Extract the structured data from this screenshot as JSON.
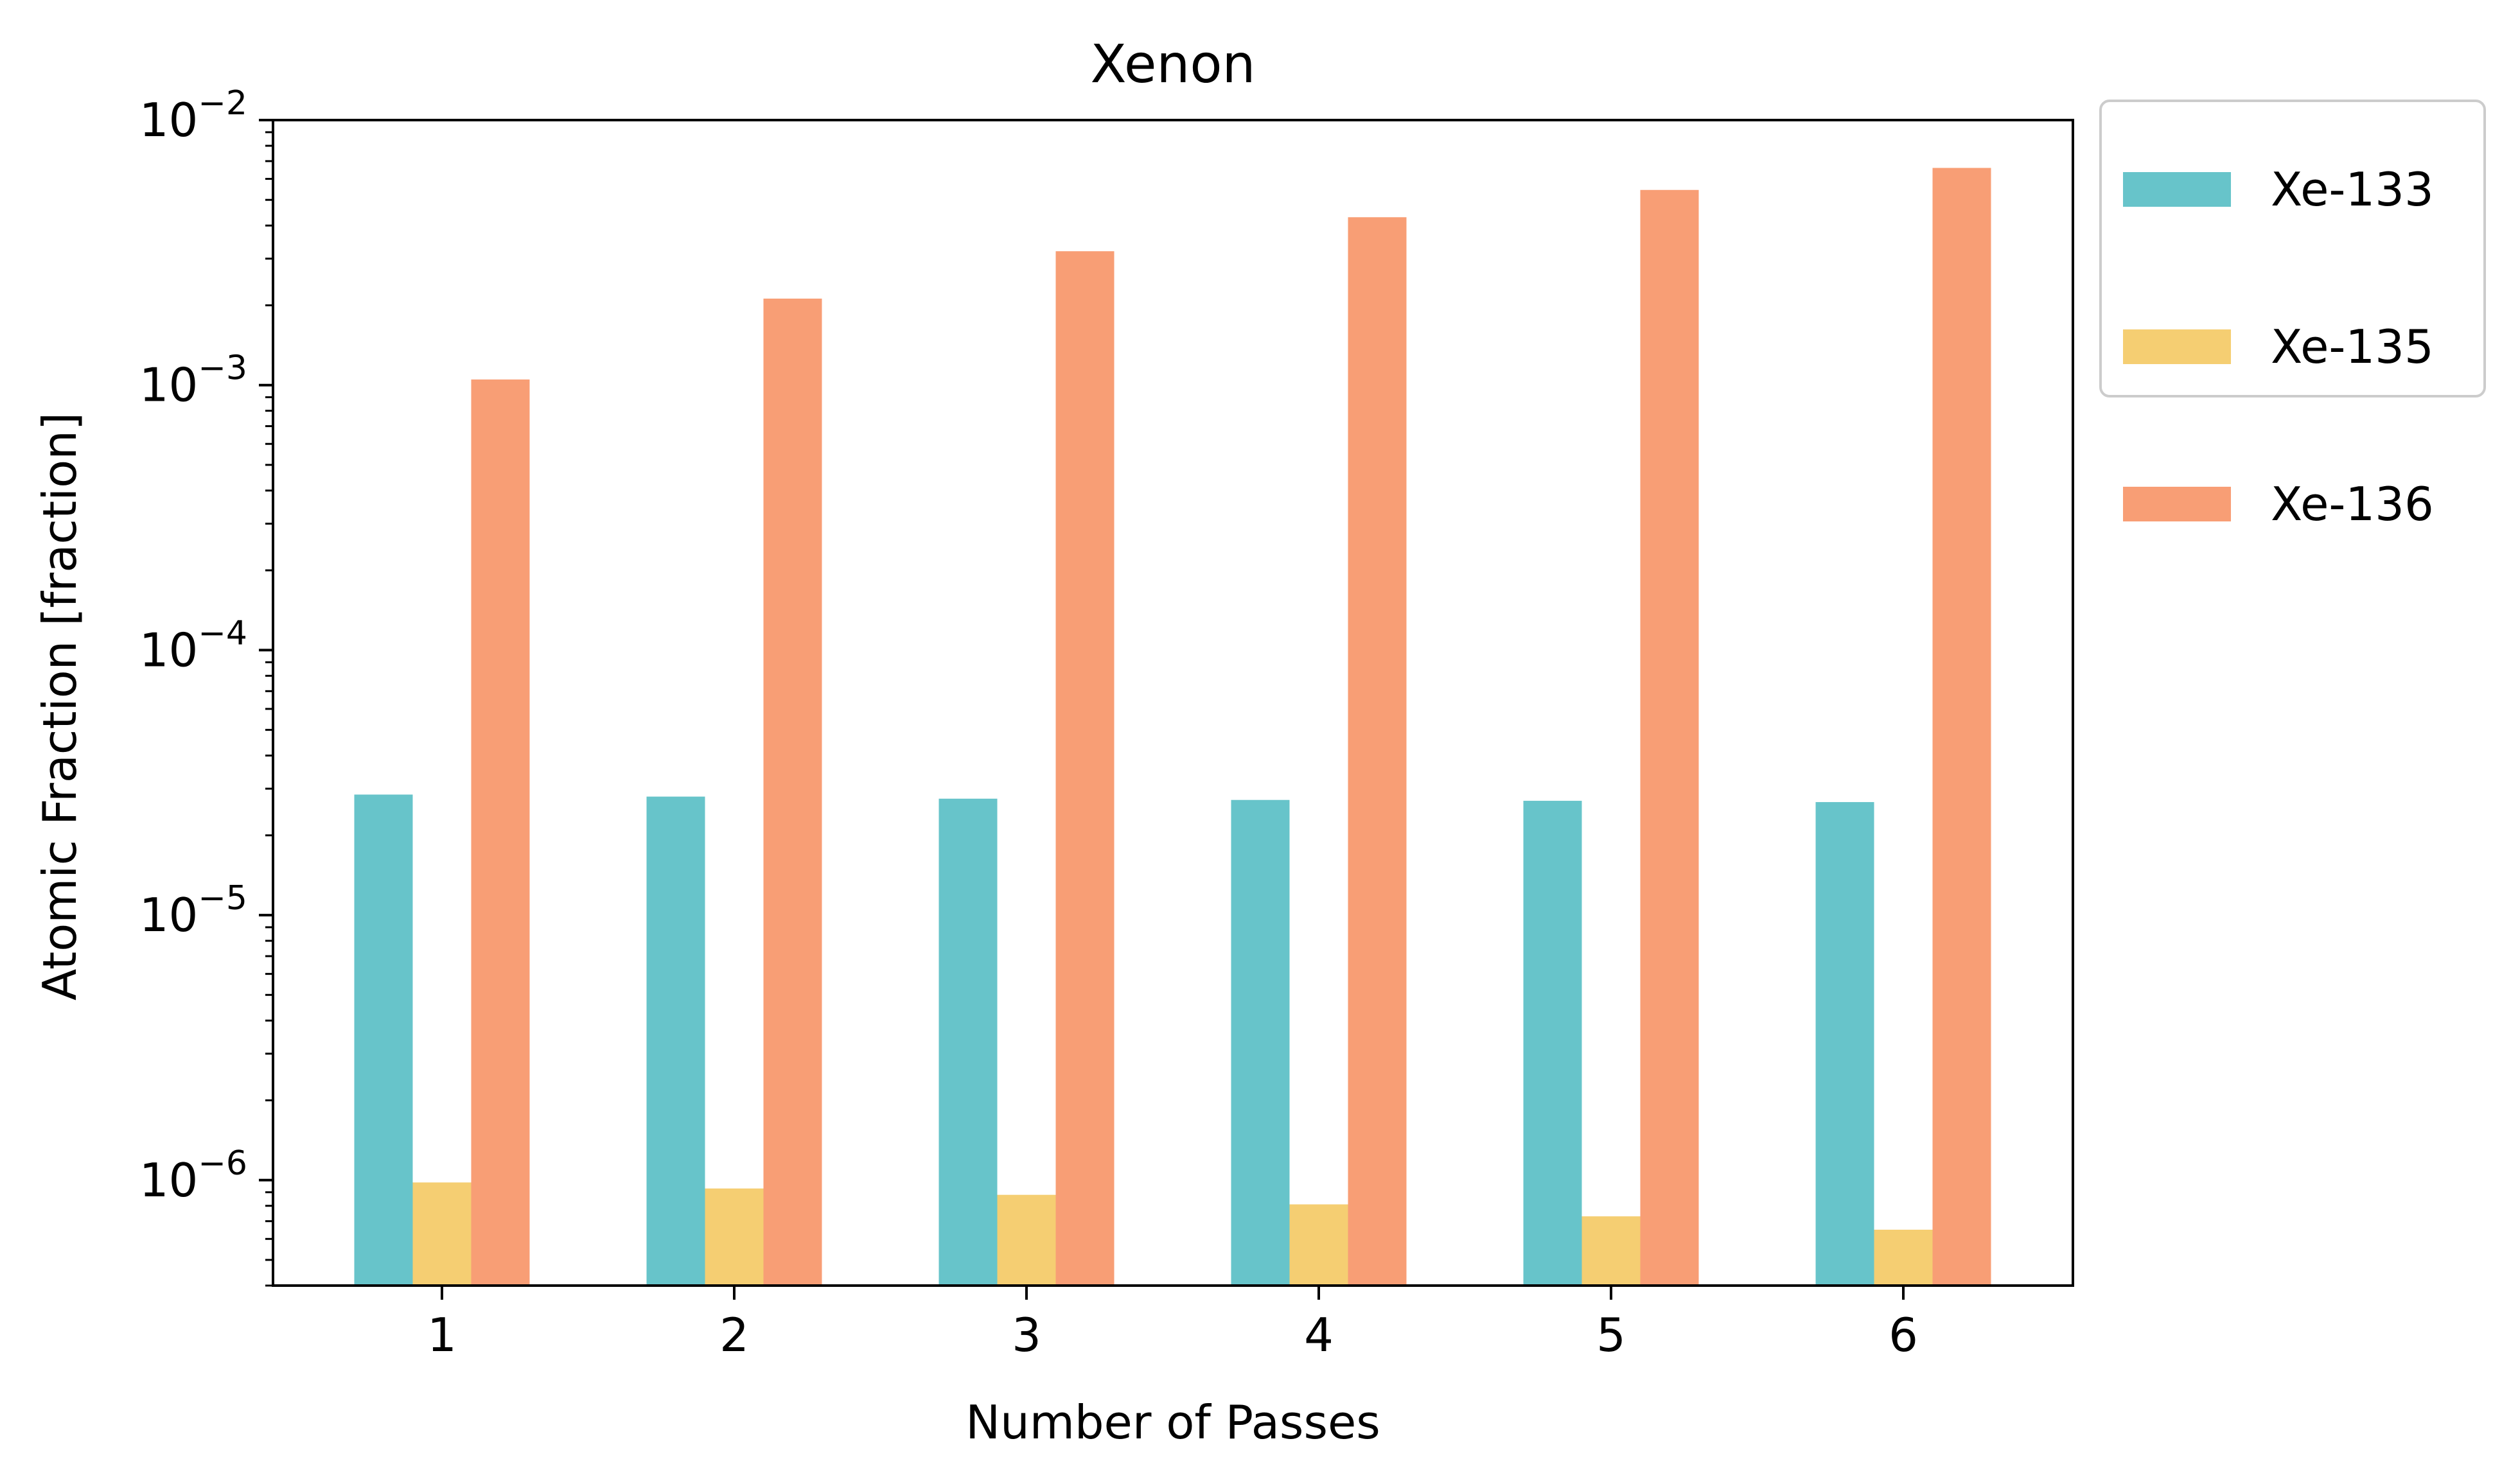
{
  "chart_data": {
    "type": "bar",
    "title": "Xenon",
    "xlabel": "Number of Passes",
    "ylabel": "Atomic Fraction [fraction]",
    "yscale": "log",
    "ylim": [
      4e-07,
      0.01
    ],
    "yticks": [
      {
        "value": 1e-06,
        "base": "10",
        "exp": "−6"
      },
      {
        "value": 1e-05,
        "base": "10",
        "exp": "−5"
      },
      {
        "value": 0.0001,
        "base": "10",
        "exp": "−4"
      },
      {
        "value": 0.001,
        "base": "10",
        "exp": "−3"
      },
      {
        "value": 0.01,
        "base": "10",
        "exp": "−2"
      }
    ],
    "categories": [
      "1",
      "2",
      "3",
      "4",
      "5",
      "6"
    ],
    "series": [
      {
        "name": "Xe-133",
        "color": "#67C4CA",
        "values": [
          2.85e-05,
          2.8e-05,
          2.75e-05,
          2.72e-05,
          2.7e-05,
          2.67e-05
        ]
      },
      {
        "name": "Xe-135",
        "color": "#F5CE72",
        "values": [
          9.8e-07,
          9.3e-07,
          8.8e-07,
          8.1e-07,
          7.3e-07,
          6.5e-07
        ]
      },
      {
        "name": "Xe-136",
        "color": "#F89E75",
        "values": [
          0.00105,
          0.00212,
          0.0032,
          0.0043,
          0.00545,
          0.0066
        ]
      }
    ],
    "legend": "outside-top-right",
    "grid": false
  }
}
